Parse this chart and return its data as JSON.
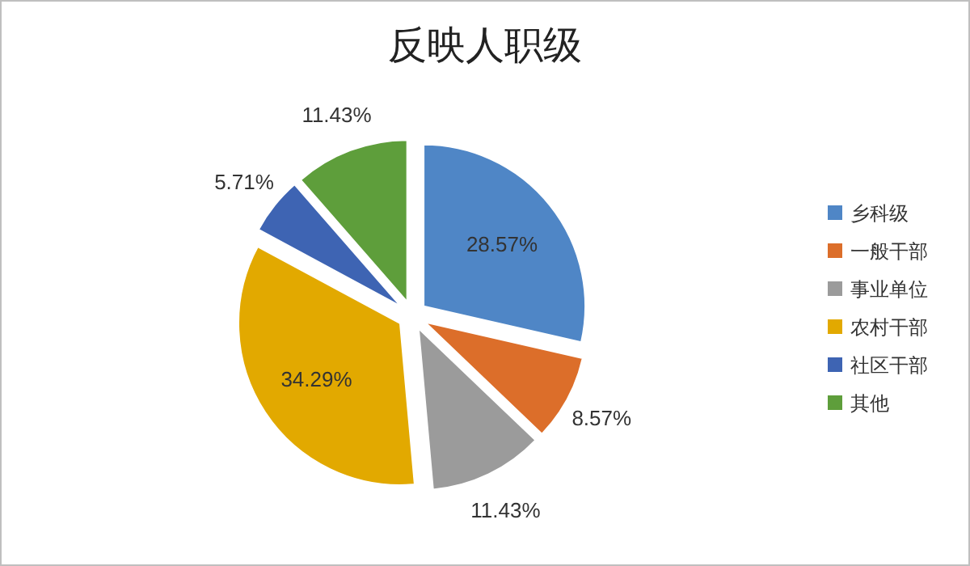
{
  "chart_data": {
    "type": "pie",
    "title": "反映人职级",
    "categories": [
      "乡科级",
      "一般干部",
      "事业单位",
      "农村干部",
      "社区干部",
      "其他"
    ],
    "values": [
      28.57,
      8.57,
      11.43,
      34.29,
      5.71,
      11.43
    ],
    "value_labels": [
      "28.57%",
      "8.57%",
      "11.43%",
      "34.29%",
      "5.71%",
      "11.43%"
    ],
    "colors": [
      "#4f86c6",
      "#dc6e2a",
      "#9b9b9b",
      "#e2a900",
      "#3e64b3",
      "#5e9e3b"
    ],
    "legend": "right"
  }
}
